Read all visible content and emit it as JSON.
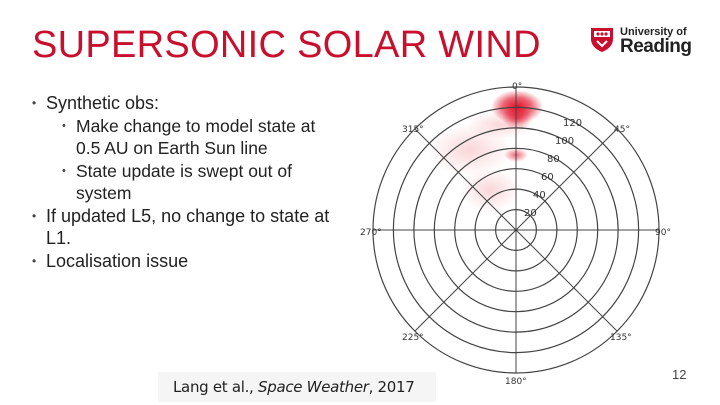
{
  "slide": {
    "title": "SUPERSONIC SOLAR WIND",
    "page_number": "12"
  },
  "logo": {
    "line1": "University of",
    "line2": "Reading"
  },
  "bullets": [
    {
      "level": 1,
      "text": "Synthetic obs:"
    },
    {
      "level": 2,
      "text": "Make change to model state at 0.5 AU on Earth Sun line"
    },
    {
      "level": 2,
      "text": "State update is swept out of system"
    },
    {
      "level": 1,
      "text": "If updated L5, no change to state at L1."
    },
    {
      "level": 1,
      "text": "Localisation issue"
    }
  ],
  "citation": {
    "authors": "Lang et al., ",
    "journal": "Space Weather",
    "year": ", 2017"
  },
  "polar_plot": {
    "angle_labels": [
      "0°",
      "45°",
      "90°",
      "135°",
      "180°",
      "225°",
      "270°",
      "315°"
    ],
    "radial_labels": [
      "20",
      "40",
      "60",
      "80",
      "100",
      "120"
    ],
    "colors": {
      "grid": "#444444",
      "highlight": "#e0001a"
    }
  }
}
